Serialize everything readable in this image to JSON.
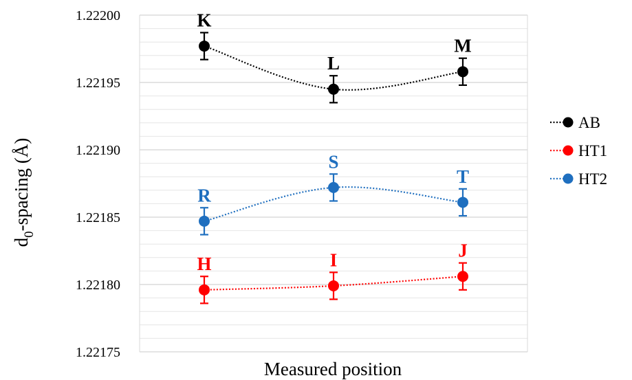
{
  "chart_data": {
    "type": "line",
    "title": "",
    "xlabel": "Measured position",
    "ylabel_main": "d",
    "ylabel_sub": "0",
    "ylabel_rest": "-spacing (Å)",
    "ylim": [
      1.22175,
      1.222
    ],
    "yticks": [
      "1.22175",
      "1.22180",
      "1.22185",
      "1.22190",
      "1.22195",
      "1.22200"
    ],
    "ytick_values": [
      1.22175,
      1.2218,
      1.22185,
      1.2219,
      1.22195,
      1.222
    ],
    "minor_grid_step": 1e-05,
    "x_positions": [
      1,
      2,
      3
    ],
    "xlim": [
      0.5,
      3.5
    ],
    "grid": "horizontal",
    "legend_position": "right",
    "series": [
      {
        "name": "AB",
        "color": "#000000",
        "values": [
          1.221977,
          1.221945,
          1.221958
        ],
        "error": 1e-05,
        "point_labels": [
          "K",
          "L",
          "M"
        ]
      },
      {
        "name": "HT1",
        "color": "#ff0000",
        "values": [
          1.221796,
          1.221799,
          1.221806
        ],
        "error": 1e-05,
        "point_labels": [
          "H",
          "I",
          "J"
        ]
      },
      {
        "name": "HT2",
        "color": "#1f6fbf",
        "values": [
          1.221847,
          1.221872,
          1.221861
        ],
        "error": 1e-05,
        "point_labels": [
          "R",
          "S",
          "T"
        ]
      }
    ]
  }
}
